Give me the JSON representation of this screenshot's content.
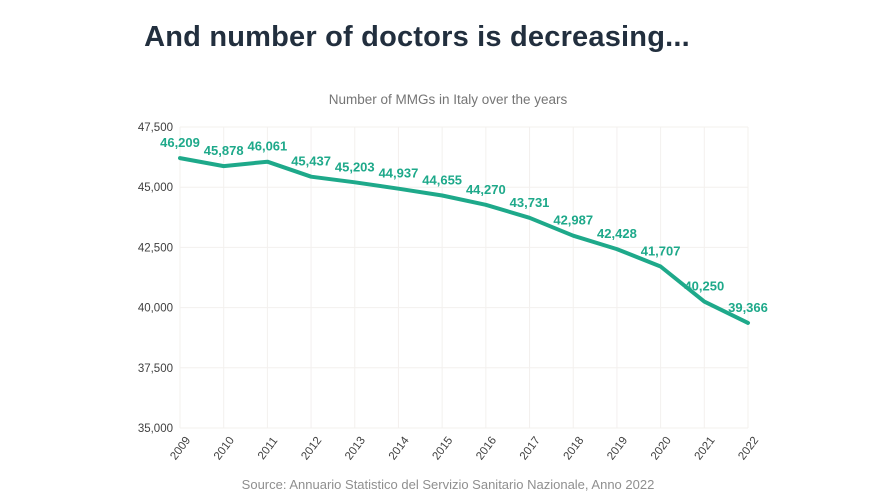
{
  "page": {
    "title": "And number of doctors is decreasing...",
    "source": "Source: Annuario Statistico del Servizio Sanitario Nazionale, Anno 2022"
  },
  "chart_data": {
    "type": "line",
    "title": "Number of MMGs in Italy over the years",
    "x": [
      "2009",
      "2010",
      "2011",
      "2012",
      "2013",
      "2014",
      "2015",
      "2016",
      "2017",
      "2018",
      "2019",
      "2020",
      "2021",
      "2022"
    ],
    "series": [
      {
        "name": "Number of MMGs",
        "values": [
          46209,
          45878,
          46061,
          45437,
          45203,
          44937,
          44655,
          44270,
          43731,
          42987,
          42428,
          41707,
          40250,
          39366
        ]
      }
    ],
    "ylim": [
      35000,
      47500
    ],
    "yticks": [
      35000,
      37500,
      40000,
      42500,
      45000,
      47500
    ],
    "grid": true,
    "legend": "none",
    "data_labels": true,
    "xlabel": "",
    "ylabel": ""
  },
  "colors": {
    "accent": "#1ea98a",
    "title_color": "#222f3e",
    "subtitle_color": "#757575",
    "source_color": "#8f8f8f",
    "tick_color": "#3f3f3f",
    "grid_color": "#f3f0ee"
  }
}
